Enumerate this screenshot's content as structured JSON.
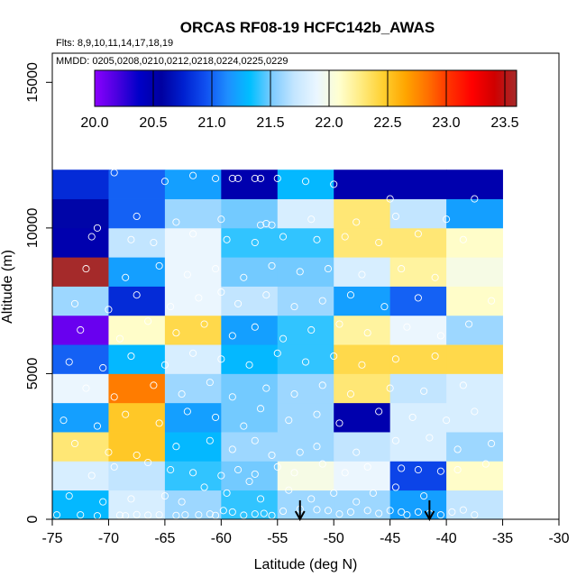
{
  "chart_data": {
    "type": "heatmap",
    "title": "ORCAS RF08-19 HCFC142b_AWAS",
    "flights_note": "Flts: 8,9,10,11,14,17,18,19",
    "dates_note": "MMDD: 0205,0208,0210,0212,0218,0224,0225,0229",
    "xlabel": "Latitude (deg N)",
    "ylabel": "Altitude (m)",
    "xlim": [
      -75,
      -30
    ],
    "ylim": [
      0,
      16000
    ],
    "xticks": [
      -75,
      -70,
      -65,
      -60,
      -55,
      -50,
      -45,
      -40,
      -35,
      -30
    ],
    "yticks": [
      0,
      5000,
      10000,
      15000
    ],
    "colorbar": {
      "min": 20.0,
      "max": 23.6,
      "ticks": [
        "20.0",
        "20.5",
        "21.0",
        "21.5",
        "22.0",
        "22.5",
        "23.0",
        "23.5"
      ],
      "tick_values": [
        20.0,
        20.5,
        21.0,
        21.5,
        22.0,
        22.5,
        23.0,
        23.5
      ],
      "colors": [
        "#8b00ff",
        "#4b00e0",
        "#0000c8",
        "#0000a0",
        "#0020d0",
        "#1050f0",
        "#1e8fff",
        "#00bfff",
        "#7ecbff",
        "#c4e6ff",
        "#eaf6ff",
        "#ffffd0",
        "#ffeb80",
        "#ffd030",
        "#ffa500",
        "#ff7000",
        "#ff3000",
        "#ff0000",
        "#d00000",
        "#a52a2a"
      ]
    },
    "lat_bins": [
      [
        -75,
        -70
      ],
      [
        -70,
        -65
      ],
      [
        -65,
        -60
      ],
      [
        -60,
        -55
      ],
      [
        -55,
        -50
      ],
      [
        -50,
        -45
      ],
      [
        -45,
        -40
      ],
      [
        -40,
        -35
      ]
    ],
    "alt_bins": [
      [
        0,
        1000
      ],
      [
        1000,
        2000
      ],
      [
        2000,
        3000
      ],
      [
        3000,
        4000
      ],
      [
        4000,
        5000
      ],
      [
        5000,
        6000
      ],
      [
        6000,
        7000
      ],
      [
        7000,
        8000
      ],
      [
        8000,
        9000
      ],
      [
        9000,
        10000
      ],
      [
        10000,
        11000
      ],
      [
        11000,
        12000
      ]
    ],
    "cell_values": [
      [
        21.3,
        21.8,
        21.6,
        21.4,
        21.6,
        21.6,
        21.2,
        21.7
      ],
      [
        21.8,
        21.7,
        21.4,
        21.5,
        22.0,
        21.9,
        20.9,
        22.1
      ],
      [
        22.3,
        22.5,
        21.3,
        21.6,
        21.6,
        21.7,
        21.8,
        21.6
      ],
      [
        21.2,
        22.5,
        21.2,
        21.5,
        21.6,
        20.5,
        21.8,
        21.8
      ],
      [
        21.9,
        22.8,
        21.6,
        21.5,
        21.6,
        22.3,
        21.7,
        21.8
      ],
      [
        21.0,
        21.3,
        21.8,
        21.3,
        21.4,
        22.4,
        22.4,
        22.4
      ],
      [
        20.1,
        22.1,
        22.4,
        21.2,
        21.4,
        22.2,
        21.9,
        21.6
      ],
      [
        21.6,
        20.8,
        21.9,
        21.7,
        21.6,
        21.2,
        21.0,
        22.1
      ],
      [
        23.6,
        21.2,
        21.9,
        21.5,
        21.5,
        21.8,
        22.2,
        22.0
      ],
      [
        20.5,
        21.7,
        21.9,
        21.4,
        21.4,
        22.3,
        22.3,
        22.1
      ],
      [
        20.6,
        21.0,
        21.6,
        21.5,
        21.8,
        22.3,
        21.7,
        21.2
      ],
      [
        20.8,
        21.0,
        21.2,
        20.5,
        21.3,
        20.5,
        20.5,
        20.5
      ]
    ],
    "samples": [
      [
        -74.6,
        150
      ],
      [
        -72.5,
        150
      ],
      [
        -71.0,
        120
      ],
      [
        -69.0,
        140
      ],
      [
        -68.5,
        120
      ],
      [
        -67.5,
        160
      ],
      [
        -66.5,
        140
      ],
      [
        -65.5,
        150
      ],
      [
        -64.0,
        130
      ],
      [
        -63.2,
        150
      ],
      [
        -62.0,
        150
      ],
      [
        -61.0,
        180
      ],
      [
        -60.5,
        130
      ],
      [
        -59.8,
        300
      ],
      [
        -59.0,
        250
      ],
      [
        -58.0,
        140
      ],
      [
        -57.0,
        180
      ],
      [
        -56.2,
        200
      ],
      [
        -55.5,
        130
      ],
      [
        -54.5,
        280
      ],
      [
        -53.0,
        350
      ],
      [
        -51.5,
        330
      ],
      [
        -50.5,
        300
      ],
      [
        -49.5,
        180
      ],
      [
        -48.5,
        250
      ],
      [
        -47.0,
        300
      ],
      [
        -46.0,
        200
      ],
      [
        -45.0,
        300
      ],
      [
        -44.0,
        250
      ],
      [
        -43.5,
        150
      ],
      [
        -42.5,
        250
      ],
      [
        -41.5,
        200
      ],
      [
        -40.5,
        150
      ],
      [
        -39.5,
        250
      ],
      [
        -38.5,
        320
      ],
      [
        -37.5,
        150
      ],
      [
        -73.5,
        800
      ],
      [
        -70.5,
        600
      ],
      [
        -68.0,
        700
      ],
      [
        -65.0,
        800
      ],
      [
        -63.5,
        600
      ],
      [
        -61.5,
        1100
      ],
      [
        -59.5,
        900
      ],
      [
        -57.5,
        1300
      ],
      [
        -56.5,
        700
      ],
      [
        -54.0,
        1000
      ],
      [
        -52.0,
        700
      ],
      [
        -50.0,
        900
      ],
      [
        -48.0,
        600
      ],
      [
        -46.5,
        900
      ],
      [
        -44.5,
        1100
      ],
      [
        -42.0,
        800
      ],
      [
        -71.5,
        1500
      ],
      [
        -69.5,
        1800
      ],
      [
        -66.5,
        1950
      ],
      [
        -64.5,
        1700
      ],
      [
        -62.5,
        1600
      ],
      [
        -60.0,
        1500
      ],
      [
        -58.5,
        1700
      ],
      [
        -57.0,
        1550
      ],
      [
        -55.0,
        1800
      ],
      [
        -53.5,
        1600
      ],
      [
        -51.0,
        1900
      ],
      [
        -49.0,
        1600
      ],
      [
        -47.0,
        1800
      ],
      [
        -44.0,
        1750
      ],
      [
        -42.5,
        1700
      ],
      [
        -40.5,
        1650
      ],
      [
        -39.0,
        1700
      ],
      [
        -36.5,
        1900
      ],
      [
        -73.0,
        2600
      ],
      [
        -70.0,
        2300
      ],
      [
        -67.5,
        2200
      ],
      [
        -64.0,
        2500
      ],
      [
        -61.0,
        2700
      ],
      [
        -59.0,
        2400
      ],
      [
        -57.0,
        2700
      ],
      [
        -55.5,
        2200
      ],
      [
        -53.0,
        2300
      ],
      [
        -51.5,
        2500
      ],
      [
        -48.0,
        2300
      ],
      [
        -44.5,
        2700
      ],
      [
        -41.5,
        2800
      ],
      [
        -39.0,
        2400
      ],
      [
        -36.0,
        2600
      ],
      [
        -74.0,
        3400
      ],
      [
        -71.0,
        3200
      ],
      [
        -68.5,
        3600
      ],
      [
        -65.5,
        3300
      ],
      [
        -63.0,
        3700
      ],
      [
        -60.5,
        3500
      ],
      [
        -58.0,
        3200
      ],
      [
        -56.5,
        3800
      ],
      [
        -54.0,
        3400
      ],
      [
        -51.5,
        3600
      ],
      [
        -49.5,
        3300
      ],
      [
        -46.0,
        3700
      ],
      [
        -43.0,
        3500
      ],
      [
        -40.0,
        3400
      ],
      [
        -37.5,
        3700
      ],
      [
        -72.0,
        4500
      ],
      [
        -69.5,
        4200
      ],
      [
        -66.0,
        4600
      ],
      [
        -63.5,
        4300
      ],
      [
        -61.0,
        4700
      ],
      [
        -59.0,
        4200
      ],
      [
        -56.0,
        4500
      ],
      [
        -53.5,
        4300
      ],
      [
        -51.0,
        4600
      ],
      [
        -48.5,
        4300
      ],
      [
        -45.0,
        4500
      ],
      [
        -42.0,
        4400
      ],
      [
        -38.5,
        4600
      ],
      [
        -73.5,
        5400
      ],
      [
        -70.5,
        5200
      ],
      [
        -68.0,
        5600
      ],
      [
        -65.0,
        5300
      ],
      [
        -62.5,
        5700
      ],
      [
        -60.0,
        5500
      ],
      [
        -57.5,
        5300
      ],
      [
        -55.0,
        5700
      ],
      [
        -52.5,
        5400
      ],
      [
        -50.0,
        5600
      ],
      [
        -47.5,
        5300
      ],
      [
        -44.5,
        5500
      ],
      [
        -41.0,
        5600
      ],
      [
        -72.5,
        6500
      ],
      [
        -69.0,
        6200
      ],
      [
        -66.5,
        6800
      ],
      [
        -64.0,
        6400
      ],
      [
        -61.5,
        6700
      ],
      [
        -59.0,
        6300
      ],
      [
        -57.0,
        6600
      ],
      [
        -54.5,
        6200
      ],
      [
        -52.0,
        6500
      ],
      [
        -49.5,
        6700
      ],
      [
        -47.0,
        6400
      ],
      [
        -43.5,
        6600
      ],
      [
        -40.5,
        6300
      ],
      [
        -38.0,
        6700
      ],
      [
        -73.0,
        7400
      ],
      [
        -70.0,
        7200
      ],
      [
        -67.5,
        7700
      ],
      [
        -64.5,
        7300
      ],
      [
        -62.0,
        7600
      ],
      [
        -60.0,
        7800
      ],
      [
        -58.5,
        7400
      ],
      [
        -56.0,
        7700
      ],
      [
        -53.5,
        7300
      ],
      [
        -51.0,
        7500
      ],
      [
        -48.5,
        7700
      ],
      [
        -45.5,
        7300
      ],
      [
        -42.5,
        7600
      ],
      [
        -36.0,
        7500
      ],
      [
        -72.0,
        8600
      ],
      [
        -68.5,
        8300
      ],
      [
        -65.5,
        8700
      ],
      [
        -63.0,
        8400
      ],
      [
        -60.5,
        8600
      ],
      [
        -58.0,
        8300
      ],
      [
        -55.5,
        8700
      ],
      [
        -53.0,
        8500
      ],
      [
        -50.5,
        8600
      ],
      [
        -47.5,
        8400
      ],
      [
        -44.0,
        8600
      ],
      [
        -41.0,
        8300
      ],
      [
        -71.5,
        9700
      ],
      [
        -68.0,
        9600
      ],
      [
        -66.0,
        9500
      ],
      [
        -62.5,
        9800
      ],
      [
        -59.5,
        9600
      ],
      [
        -57.0,
        9500
      ],
      [
        -54.5,
        9700
      ],
      [
        -51.5,
        9600
      ],
      [
        -49.0,
        9700
      ],
      [
        -46.0,
        9500
      ],
      [
        -42.5,
        9800
      ],
      [
        -38.5,
        9600
      ],
      [
        -71.0,
        10000
      ],
      [
        -67.5,
        10400
      ],
      [
        -64.0,
        10200
      ],
      [
        -60.0,
        10300
      ],
      [
        -56.5,
        10100
      ],
      [
        -56.0,
        10150
      ],
      [
        -55.5,
        10100
      ],
      [
        -52.0,
        10300
      ],
      [
        -48.0,
        10200
      ],
      [
        -44.5,
        10400
      ],
      [
        -40.0,
        10300
      ],
      [
        -69.5,
        11900
      ],
      [
        -65.0,
        11600
      ],
      [
        -62.5,
        11800
      ],
      [
        -60.5,
        11700
      ],
      [
        -59.0,
        11700
      ],
      [
        -58.5,
        11700
      ],
      [
        -57.0,
        11700
      ],
      [
        -56.5,
        11700
      ],
      [
        -55.0,
        11700
      ],
      [
        -52.5,
        11600
      ],
      [
        -50.0,
        11500
      ],
      [
        -45.0,
        11000
      ],
      [
        -37.5,
        11000
      ]
    ],
    "arrows_lat": [
      -53,
      -41.5
    ]
  }
}
